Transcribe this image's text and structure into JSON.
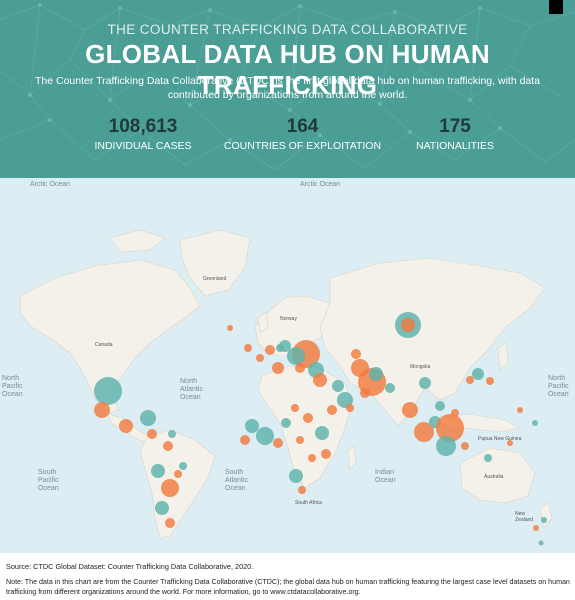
{
  "header": {
    "supertitle": "THE COUNTER TRAFFICKING DATA COLLABORATIVE",
    "title": "GLOBAL DATA HUB ON HUMAN TRAFFICKING",
    "subtitle": "The Counter Trafficking Data Collaborative (CTDC) is the first global data hub on human trafficking, with data contributed by organizations from around the world.",
    "stats": [
      {
        "value": "108,613",
        "label": "INDIVIDUAL CASES"
      },
      {
        "value": "164",
        "label": "COUNTRIES OF EXPLOITATION"
      },
      {
        "value": "175",
        "label": "NATIONALITIES"
      }
    ],
    "colors": {
      "teal": "#4a9e95",
      "stat_number": "#203a3a"
    }
  },
  "map": {
    "ocean_labels": {
      "arctic_left": "Arctic Ocean",
      "arctic_right": "Arctic Ocean",
      "north_atlantic": "North\nAtlantic\nOcean",
      "north_pacific_left": "North\nPacific\nOcean",
      "north_pacific_right": "North\nPacific\nOcean",
      "south_pacific": "South\nPacific\nOcean",
      "south_atlantic": "South\nAtlantic\nOcean",
      "indian": "Indian\nOcean"
    },
    "place_labels": {
      "greenland": "Greenland",
      "canada": "Canada",
      "mongolia": "Mongolia",
      "australia": "Australia",
      "south_africa": "South Africa",
      "new_zealand": "New\nZealand",
      "norway": "Norway",
      "papua_new_guinea": "Papua New Guinea"
    },
    "colors": {
      "ocean": "#dcedf3",
      "land": "#f3f1ea",
      "border": "#d9d4c6",
      "nationality_marker": "#f27a3f",
      "exploitation_marker": "#5eb2ab"
    }
  },
  "footer": {
    "source": "Source: CTDC Global Dataset: Counter Trafficking Data Collaborative, 2020.",
    "note": "Note: The data in this chart are from the Counter Trafficking Data Collaborative (CTDC); the global data hub on human trafficking featuring the largest case level datasets on human trafficking from different organizations around the world. For more information, go to www.ctdatacollaborative.org."
  }
}
